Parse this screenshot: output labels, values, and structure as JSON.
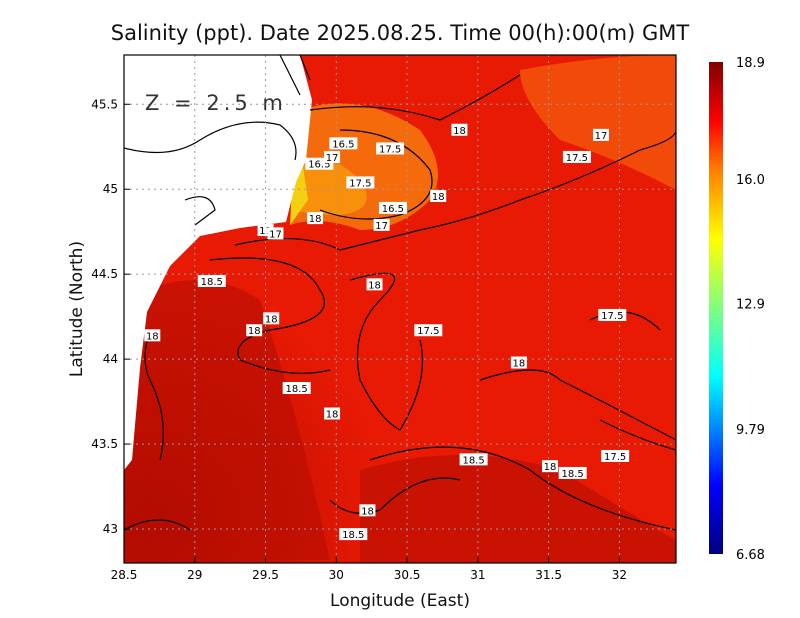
{
  "chart_data": {
    "type": "heatmap",
    "title": "Salinity (ppt). Date 2025.08.25. Time 00(h):00(m) GMT",
    "annotation": "Z = 2.5 m",
    "xlabel": "Longitude (East)",
    "ylabel": "Latitude (North)",
    "xlim": [
      28.5,
      32.4
    ],
    "ylim": [
      42.8,
      45.79
    ],
    "xticks": [
      "28.5",
      "29",
      "29.5",
      "30",
      "30.5",
      "31",
      "31.5",
      "32"
    ],
    "xtick_values": [
      28.5,
      29,
      29.5,
      30,
      30.5,
      31,
      31.5,
      32
    ],
    "yticks": [
      "45.5",
      "45",
      "44.5",
      "44",
      "43.5",
      "43"
    ],
    "ytick_values": [
      45.5,
      45,
      44.5,
      44,
      43.5,
      43
    ],
    "grid": true,
    "colorbar": {
      "min": 6.68,
      "max": 18.9,
      "tick_labels": [
        "18.9",
        "16.0",
        "12.9",
        "9.79",
        "6.68"
      ],
      "tick_values": [
        18.9,
        16.0,
        12.9,
        9.79,
        6.68
      ],
      "colormap": "jet"
    },
    "contour_labels": [
      {
        "text": "16.5",
        "lon": 30.05,
        "lat": 45.27
      },
      {
        "text": "17.5",
        "lon": 30.38,
        "lat": 45.24
      },
      {
        "text": "18",
        "lon": 30.87,
        "lat": 45.35
      },
      {
        "text": "17",
        "lon": 31.87,
        "lat": 45.32
      },
      {
        "text": "17.5",
        "lon": 31.7,
        "lat": 45.19
      },
      {
        "text": "16.5",
        "lon": 29.88,
        "lat": 45.15
      },
      {
        "text": "17",
        "lon": 29.97,
        "lat": 45.19
      },
      {
        "text": "17.5",
        "lon": 30.17,
        "lat": 45.04
      },
      {
        "text": "16.5",
        "lon": 30.4,
        "lat": 44.89
      },
      {
        "text": "18",
        "lon": 30.72,
        "lat": 44.96
      },
      {
        "text": "17",
        "lon": 30.32,
        "lat": 44.79
      },
      {
        "text": "18",
        "lon": 29.85,
        "lat": 44.83
      },
      {
        "text": "11",
        "lon": 29.5,
        "lat": 44.76
      },
      {
        "text": "17",
        "lon": 29.57,
        "lat": 44.74
      },
      {
        "text": "18.5",
        "lon": 29.12,
        "lat": 44.46
      },
      {
        "text": "18",
        "lon": 30.27,
        "lat": 44.44
      },
      {
        "text": "18",
        "lon": 29.54,
        "lat": 44.24
      },
      {
        "text": "18",
        "lon": 29.42,
        "lat": 44.17
      },
      {
        "text": "18",
        "lon": 28.7,
        "lat": 44.14
      },
      {
        "text": "17.5",
        "lon": 30.65,
        "lat": 44.17
      },
      {
        "text": "17.5",
        "lon": 31.95,
        "lat": 44.26
      },
      {
        "text": "18",
        "lon": 31.29,
        "lat": 43.98
      },
      {
        "text": "18.5",
        "lon": 29.72,
        "lat": 43.83
      },
      {
        "text": "18",
        "lon": 29.97,
        "lat": 43.68
      },
      {
        "text": "18.5",
        "lon": 30.97,
        "lat": 43.41
      },
      {
        "text": "17.5",
        "lon": 31.97,
        "lat": 43.43
      },
      {
        "text": "18",
        "lon": 31.51,
        "lat": 43.37
      },
      {
        "text": "18.5",
        "lon": 31.67,
        "lat": 43.33
      },
      {
        "text": "18",
        "lon": 30.22,
        "lat": 43.11
      },
      {
        "text": "18.5",
        "lon": 30.12,
        "lat": 42.97
      }
    ]
  }
}
